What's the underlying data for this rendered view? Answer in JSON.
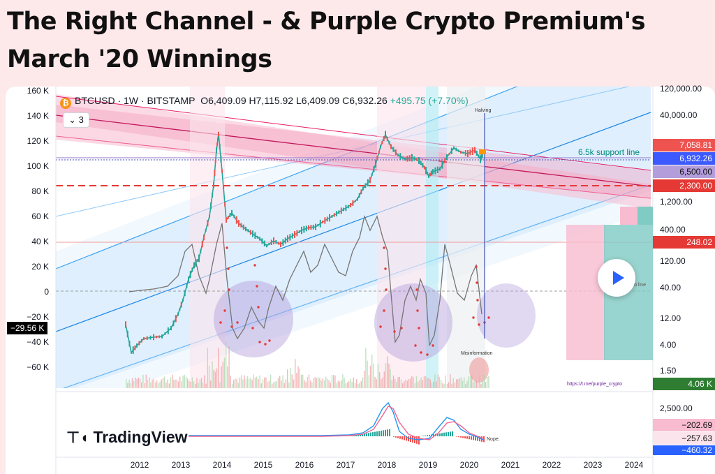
{
  "title_line1": "The Right Channel - & Purple Crypto Premium's",
  "title_line2": "March '20 Winnings",
  "header": {
    "symbol": "BTCUSD",
    "interval": "1W",
    "exchange": "BITSTAMP",
    "open": "O6,409.09",
    "high": "H7,115.92",
    "low": "L6,409.09",
    "close": "C6,932.26",
    "change": "+495.75 (+7.70%)",
    "separator": "·"
  },
  "collapse_count": "3",
  "left_axis": [
    "160 K",
    "140 K",
    "120 K",
    "100 K",
    "80 K",
    "60 K",
    "40 K",
    "20 K",
    "0",
    "−20 K",
    "−40 K",
    "−60 K"
  ],
  "left_badge": "−29.56 K",
  "right_axis": [
    "120,000.00",
    "40,000.00",
    "1,200.00",
    "400.00",
    "120.00",
    "40.00",
    "12.00",
    "4.00",
    "1.50"
  ],
  "right_axis_lower": "2,500.00",
  "price_labels": {
    "p7058": "7,058.81",
    "p6932": "6,932.26",
    "p6500": "6,500.00",
    "p2300": "2,300.00",
    "p248": "248.02",
    "p406": "4.06 K",
    "m1": "−202.69",
    "m2": "−257.63",
    "m3": "−460.32"
  },
  "annotations": {
    "halving": "Halving",
    "support": "6.5k support line",
    "misinformation": "Misinformation",
    "link": "https://t.me/purple_crypto",
    "nope": "Nope.",
    "zero_line": "ero line"
  },
  "years": [
    "2012",
    "2013",
    "2014",
    "2015",
    "2016",
    "2017",
    "2018",
    "2019",
    "2020",
    "2021",
    "2022",
    "2023",
    "2024"
  ],
  "brand": "TradingView",
  "colors": {
    "accent": "#2962ff",
    "up": "#26a69a",
    "down": "#ef5350",
    "channel": "#bbdefb",
    "pink": "#f8bbd0"
  }
}
